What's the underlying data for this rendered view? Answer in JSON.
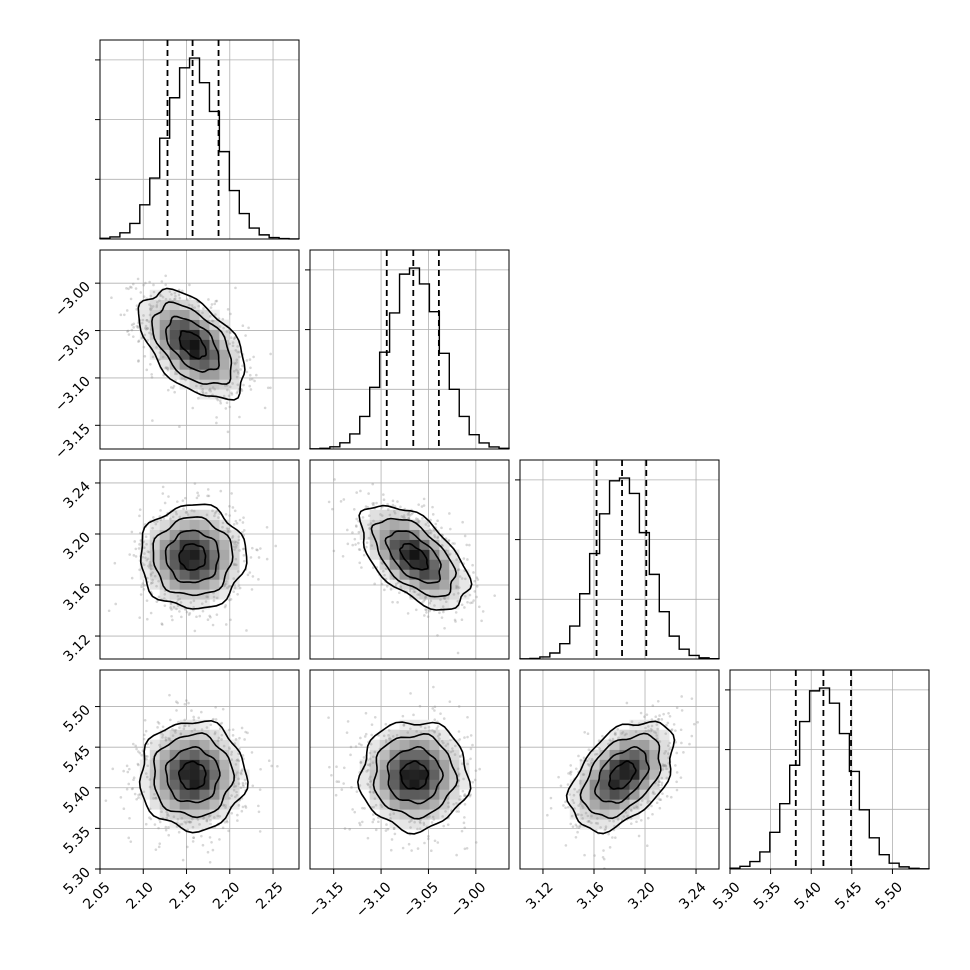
{
  "chart_data": {
    "type": "corner",
    "parameters": [
      {
        "name": "",
        "mean": 2.157,
        "sd": 0.03,
        "range": [
          2.05,
          2.28
        ],
        "ticks": [
          "2.05",
          "2.10",
          "2.15",
          "2.20",
          "2.25"
        ],
        "quantiles": [
          2.128,
          2.157,
          2.187
        ]
      },
      {
        "name": "",
        "mean": -3.065,
        "sd": 0.028,
        "range": [
          -3.175,
          -2.965
        ],
        "ticks": [
          "−3.15",
          "−3.10",
          "−3.05",
          "−3.00"
        ],
        "quantiles": [
          -3.094,
          -3.066,
          -3.039
        ]
      },
      {
        "name": "",
        "mean": 3.182,
        "sd": 0.02,
        "range": [
          3.102,
          3.258
        ],
        "ticks": [
          "3.12",
          "3.16",
          "3.20",
          "3.24"
        ],
        "quantiles": [
          3.162,
          3.182,
          3.201
        ]
      },
      {
        "name": "",
        "mean": 5.415,
        "sd": 0.033,
        "range": [
          5.3,
          5.545
        ],
        "ticks": [
          "5.30",
          "5.35",
          "5.40",
          "5.45",
          "5.50"
        ],
        "quantiles": [
          5.381,
          5.415,
          5.449
        ]
      }
    ],
    "correlations": [
      {
        "pair": [
          0,
          1
        ],
        "rho": -0.5
      },
      {
        "pair": [
          0,
          2
        ],
        "rho": 0.0
      },
      {
        "pair": [
          1,
          2
        ],
        "rho": -0.55
      },
      {
        "pair": [
          0,
          3
        ],
        "rho": 0.0
      },
      {
        "pair": [
          1,
          3
        ],
        "rho": 0.0
      },
      {
        "pair": [
          2,
          3
        ],
        "rho": 0.45
      }
    ],
    "histogram_bins": 20,
    "contour_levels_sigma": [
      0.5,
      1.0,
      1.5,
      2.0
    ],
    "grid": true,
    "colors": {
      "line": "#000000",
      "grid": "#b0b0b0",
      "points": "#8c8c8c"
    }
  }
}
